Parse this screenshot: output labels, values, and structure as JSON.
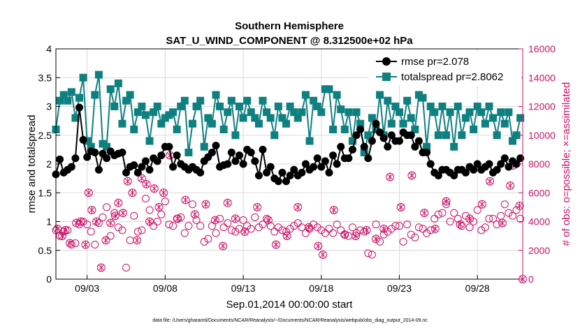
{
  "chart_data": {
    "type": "line",
    "title_line1": "Southern Hemisphere",
    "title_line2": "SAT_U_WIND_COMPONENT @ 8.312500e+02 hPa",
    "xlabel": "Sep.01,2014 00:00:00 start",
    "ylabel_left": "rmse and totalspread",
    "ylabel_right": "# of obs: o=possible; ×=assimilated",
    "x_domain_days": [
      1,
      30.9
    ],
    "x_ticks": [
      {
        "label": "09/03",
        "day": 3
      },
      {
        "label": "09/08",
        "day": 8
      },
      {
        "label": "09/13",
        "day": 13
      },
      {
        "label": "09/18",
        "day": 18
      },
      {
        "label": "09/23",
        "day": 23
      },
      {
        "label": "09/28",
        "day": 28
      }
    ],
    "ylim_left": [
      0,
      4
    ],
    "yticks_left": [
      "0",
      "0.5",
      "1",
      "1.5",
      "2",
      "2.5",
      "3",
      "3.5",
      "4"
    ],
    "ylim_right": [
      0,
      16000
    ],
    "yticks_right": [
      "0",
      "2000",
      "4000",
      "6000",
      "8000",
      "10000",
      "12000",
      "14000",
      "16000"
    ],
    "x_start_day": 1.0,
    "x_step_days": 0.25,
    "series": [
      {
        "name": "rmse",
        "legend": "rmse pr=2.078",
        "color": "#000000",
        "values": [
          1.82,
          2.08,
          1.85,
          1.9,
          1.95,
          2.1,
          2.98,
          2.42,
          2.12,
          2.22,
          2.2,
          1.9,
          2.18,
          2.1,
          2.22,
          2.15,
          2.18,
          2.2,
          1.85,
          1.95,
          1.98,
          1.85,
          1.95,
          2.05,
          1.9,
          2.1,
          2.05,
          2.15,
          2.3,
          2.3,
          1.95,
          2.15,
          2.0,
          1.95,
          1.9,
          1.95,
          1.9,
          1.85,
          2.05,
          2.12,
          2.2,
          2.32,
          1.95,
          1.98,
          2.0,
          2.2,
          2.05,
          2.15,
          2.0,
          2.25,
          2.2,
          2.05,
          1.8,
          2.25,
          1.85,
          1.95,
          1.75,
          1.7,
          1.85,
          1.7,
          1.8,
          1.9,
          1.8,
          1.85,
          2.0,
          1.9,
          1.95,
          2.1,
          1.95,
          2.05,
          1.85,
          2.15,
          2.0,
          2.3,
          2.1,
          2.1,
          2.25,
          2.5,
          2.6,
          2.3,
          2.1,
          2.4,
          2.7,
          2.55,
          2.45,
          2.3,
          2.5,
          2.4,
          2.4,
          2.55,
          2.5,
          2.5,
          2.3,
          2.4,
          2.2,
          2.2,
          2.0,
          1.85,
          1.8,
          1.9,
          1.9,
          1.85,
          1.8,
          1.9,
          1.9,
          1.85,
          1.95,
          1.9,
          2.0,
          1.9,
          1.95,
          2.0,
          1.85,
          1.9,
          2.0,
          2.1,
          1.95,
          2.05,
          2.0,
          2.1,
          2.5,
          2.3,
          2.6,
          2.4,
          2.6,
          2.25,
          1.85,
          1.8,
          2.0,
          1.95,
          2.05,
          1.9,
          2.0,
          1.75,
          1.85,
          2.0,
          1.9,
          2.0,
          1.95,
          1.85,
          2.0,
          1.9,
          1.8,
          1.95,
          1.85,
          1.9,
          1.8,
          1.85,
          1.9,
          1.95,
          1.85,
          1.9,
          1.9,
          1.85,
          1.8,
          1.85,
          1.9,
          1.85,
          1.9,
          1.8,
          1.85,
          1.9,
          1.85,
          1.9,
          1.85,
          1.8
        ]
      },
      {
        "name": "totalspread",
        "legend": "totalspread pr=2.8062",
        "color": "#0e8080",
        "values": [
          2.6,
          3.1,
          3.2,
          3.1,
          3.25,
          2.8,
          3.15,
          3.5,
          2.4,
          2.3,
          3.2,
          3.55,
          2.35,
          2.3,
          3.3,
          3.0,
          3.4,
          2.7,
          3.1,
          3.2,
          2.6,
          2.9,
          3.0,
          2.85,
          2.4,
          2.9,
          3.0,
          2.7,
          2.8,
          2.85,
          2.9,
          2.6,
          3.0,
          3.1,
          2.2,
          2.7,
          3.0,
          3.1,
          2.3,
          2.8,
          2.7,
          3.2,
          3.0,
          2.6,
          2.9,
          3.1,
          2.5,
          3.0,
          2.8,
          3.1,
          2.9,
          2.8,
          2.7,
          3.1,
          2.9,
          2.8,
          2.5,
          3.0,
          2.8,
          2.7,
          3.0,
          2.9,
          2.8,
          2.9,
          3.2,
          2.4,
          3.1,
          3.0,
          2.9,
          3.3,
          3.3,
          2.6,
          3.2,
          2.95,
          2.6,
          2.9,
          2.4,
          2.9,
          2.7,
          2.2,
          2.5,
          2.8,
          2.6,
          3.2,
          2.5,
          3.1,
          2.7,
          3.0,
          2.9,
          2.7,
          3.1,
          2.8,
          2.6,
          3.2,
          3.15,
          2.3,
          3.0,
          2.9,
          2.5,
          3.0,
          2.5,
          2.9,
          2.3,
          3.0,
          2.5,
          2.8,
          2.9,
          2.6,
          3.0,
          2.9,
          2.7,
          3.0,
          2.8,
          2.5,
          2.9,
          2.7,
          2.9,
          2.4,
          2.5,
          2.8,
          2.7,
          2.6,
          2.4,
          2.8,
          2.3,
          2.7,
          2.6,
          2.4,
          2.5,
          2.7,
          2.55,
          2.4,
          2.6,
          2.9,
          2.7,
          2.3,
          2.8,
          2.95,
          2.6,
          2.85,
          2.75,
          2.6,
          2.8,
          2.7,
          2.6,
          2.8,
          2.7,
          2.6,
          2.7,
          2.8,
          2.9,
          2.6,
          2.7,
          2.8,
          2.6,
          2.7,
          2.9,
          2.8,
          2.7,
          2.9,
          2.8,
          2.7,
          2.8,
          2.9,
          2.7,
          2.8,
          2.9,
          2.8,
          2.7
        ]
      }
    ],
    "obs_possible": {
      "legend": "o=possible",
      "color": "#cc1166",
      "x_start_day": 1.0,
      "x_step_days": 0.25,
      "values": [
        3400,
        3000,
        3300,
        3400,
        2400,
        2500,
        3800,
        4000,
        3800,
        3300,
        2400,
        3900,
        4300,
        5000,
        3000,
        4600,
        3600,
        3400,
        800,
        2700,
        4400,
        3300,
        3400,
        5600,
        4800,
        3700,
        4000,
        4500,
        5400,
        3800,
        3700,
        4200,
        4300,
        3200,
        3700,
        5200,
        4100,
        3700,
        2600,
        2800,
        3700,
        3200,
        4200,
        3600,
        3900,
        3400,
        3300,
        3500,
        4100,
        3700,
        3500,
        4300,
        3600,
        3800,
        4200,
        3700,
        3300,
        3600,
        3400,
        3300,
        3500,
        3700,
        3900,
        3600,
        3200,
        3500,
        3800,
        3600,
        3400,
        3200,
        3500,
        3200,
        3800,
        3400,
        3100,
        3000,
        3600,
        3200,
        3400,
        3300,
        1800,
        1700,
        3800,
        2600,
        3100,
        3300,
        3500,
        3700,
        3700,
        2600,
        3800,
        3100,
        2900,
        3600,
        3500,
        3200,
        3400,
        4200,
        4500,
        4600,
        5200,
        4000,
        4600,
        4200,
        3700,
        4400,
        3600,
        4000,
        4800,
        3400,
        3600,
        4200,
        4200,
        3800,
        4400,
        5200,
        4600,
        4400,
        4800,
        4200,
        5400,
        4000,
        3300,
        3600,
        4200,
        3500,
        4200,
        3800,
        4300,
        3700,
        3800,
        4000,
        6800,
        4400,
        4000,
        4200,
        4400,
        4600,
        5200,
        3800,
        3900,
        4800,
        6200,
        5400,
        4100,
        4600,
        4000,
        3800,
        4200,
        4000,
        3600,
        3400,
        3500,
        4000,
        3400,
        3500,
        3700,
        4000,
        3600,
        3800,
        3500,
        3700,
        3600,
        3400,
        3500,
        3800,
        3600,
        3400,
        4000,
        3700,
        3800,
        4000,
        3700,
        3600,
        3800,
        4000,
        3700,
        3600,
        3800,
        4000,
        3700,
        3600,
        3900,
        4000
      ]
    },
    "obs_assimilated": {
      "legend": "×=assimilated",
      "color": "#cc1166",
      "points": [
        {
          "day": 1.1,
          "value": 3500
        },
        {
          "day": 1.4,
          "value": 3000
        },
        {
          "day": 1.6,
          "value": 3400
        },
        {
          "day": 1.9,
          "value": 2500
        },
        {
          "day": 2.3,
          "value": 3900
        },
        {
          "day": 2.6,
          "value": 4000
        },
        {
          "day": 2.9,
          "value": 2400
        },
        {
          "day": 3.1,
          "value": 6000
        },
        {
          "day": 3.3,
          "value": 4800
        },
        {
          "day": 3.6,
          "value": 4000
        },
        {
          "day": 3.9,
          "value": 800
        },
        {
          "day": 4.2,
          "value": 2700
        },
        {
          "day": 4.5,
          "value": 3900
        },
        {
          "day": 4.8,
          "value": 4400
        },
        {
          "day": 5.0,
          "value": 5300
        },
        {
          "day": 5.3,
          "value": 4600
        },
        {
          "day": 5.6,
          "value": 6800
        },
        {
          "day": 5.9,
          "value": 6000
        },
        {
          "day": 6.2,
          "value": 2700
        },
        {
          "day": 6.5,
          "value": 7000
        },
        {
          "day": 6.8,
          "value": 6600
        },
        {
          "day": 7.0,
          "value": 4000
        },
        {
          "day": 7.3,
          "value": 6300
        },
        {
          "day": 7.6,
          "value": 5000
        },
        {
          "day": 7.9,
          "value": 6000
        },
        {
          "day": 8.3,
          "value": 8600
        },
        {
          "day": 8.8,
          "value": 4200
        },
        {
          "day": 9.3,
          "value": 5500
        },
        {
          "day": 9.9,
          "value": 4500
        },
        {
          "day": 10.6,
          "value": 5200
        },
        {
          "day": 11.2,
          "value": 4100
        },
        {
          "day": 11.7,
          "value": 2300
        },
        {
          "day": 12.0,
          "value": 5300
        },
        {
          "day": 12.5,
          "value": 4200
        },
        {
          "day": 13.1,
          "value": 3300
        },
        {
          "day": 13.9,
          "value": 5000
        },
        {
          "day": 14.6,
          "value": 4100
        },
        {
          "day": 15.1,
          "value": 2400
        },
        {
          "day": 15.8,
          "value": 3000
        },
        {
          "day": 16.5,
          "value": 5000
        },
        {
          "day": 17.2,
          "value": 3600
        },
        {
          "day": 17.8,
          "value": 2300
        },
        {
          "day": 18.1,
          "value": 1700
        },
        {
          "day": 18.8,
          "value": 4800
        },
        {
          "day": 19.5,
          "value": 3100
        },
        {
          "day": 20.2,
          "value": 3000
        },
        {
          "day": 20.9,
          "value": 3400
        },
        {
          "day": 21.5,
          "value": 2800
        },
        {
          "day": 22.0,
          "value": 3500
        },
        {
          "day": 22.4,
          "value": 7100
        },
        {
          "day": 23.1,
          "value": 5000
        },
        {
          "day": 23.8,
          "value": 7200
        },
        {
          "day": 24.6,
          "value": 4600
        },
        {
          "day": 25.3,
          "value": 3500
        },
        {
          "day": 26.0,
          "value": 5400
        },
        {
          "day": 26.9,
          "value": 3800
        },
        {
          "day": 27.5,
          "value": 4200
        },
        {
          "day": 28.3,
          "value": 5200
        },
        {
          "day": 28.8,
          "value": 6800
        },
        {
          "day": 29.6,
          "value": 3900
        },
        {
          "day": 30.1,
          "value": 6500
        },
        {
          "day": 30.3,
          "value": 7900
        },
        {
          "day": 30.7,
          "value": 5100
        },
        {
          "day": 30.9,
          "value": 0
        }
      ]
    }
  },
  "footer": {
    "data_file_note": "data file: /Users/gharamti/Documents/NCAR/Reanalysis/~/Documents/NCAR/Reanalysis/webpub/obs_diag_output_2014-09.nc"
  },
  "colors": {
    "left_axis": "#000000",
    "right_axis": "#cc1166",
    "grid": "#d9d9d9"
  }
}
